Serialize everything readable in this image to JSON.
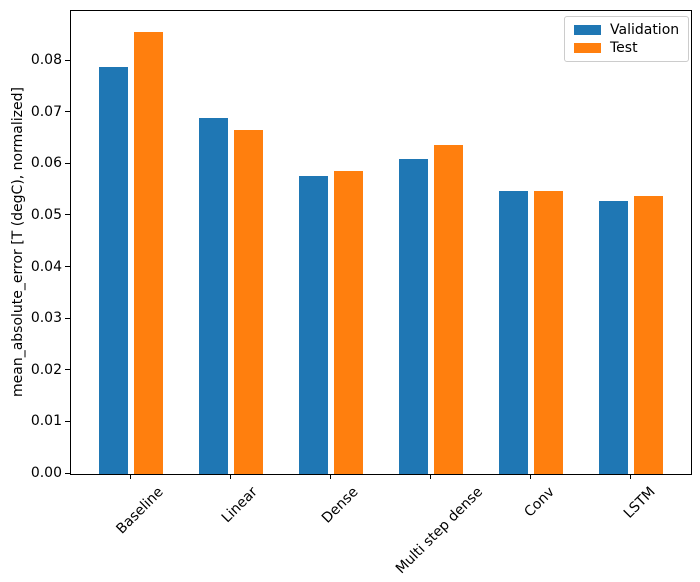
{
  "chart_data": {
    "type": "bar",
    "title": "",
    "categories": [
      "Baseline",
      "Linear",
      "Dense",
      "Multi step dense",
      "Conv",
      "LSTM"
    ],
    "series": [
      {
        "name": "Validation",
        "color": "#1f77b4",
        "values": [
          0.0788,
          0.0689,
          0.0577,
          0.061,
          0.0549,
          0.0529
        ]
      },
      {
        "name": "Test",
        "color": "#ff7f0e",
        "values": [
          0.0856,
          0.0666,
          0.0587,
          0.0637,
          0.0548,
          0.0539
        ]
      }
    ],
    "xlabel": "",
    "ylabel": "mean_absolute_error [T (degC), normalized]",
    "ylim": [
      0,
      0.0897
    ],
    "yticks": [
      0,
      0.01,
      0.02,
      0.03,
      0.04,
      0.05,
      0.06,
      0.07,
      0.08
    ],
    "ytick_labels": [
      "0.00",
      "0.01",
      "0.02",
      "0.03",
      "0.04",
      "0.05",
      "0.06",
      "0.07",
      "0.08"
    ],
    "xtick_rotation": 45,
    "grid": false,
    "legend": {
      "position": "upper right",
      "entries": [
        "Validation",
        "Test"
      ]
    },
    "axis_color": "#000000",
    "legend_border_color": "#cccccc",
    "background_color": "#ffffff"
  }
}
